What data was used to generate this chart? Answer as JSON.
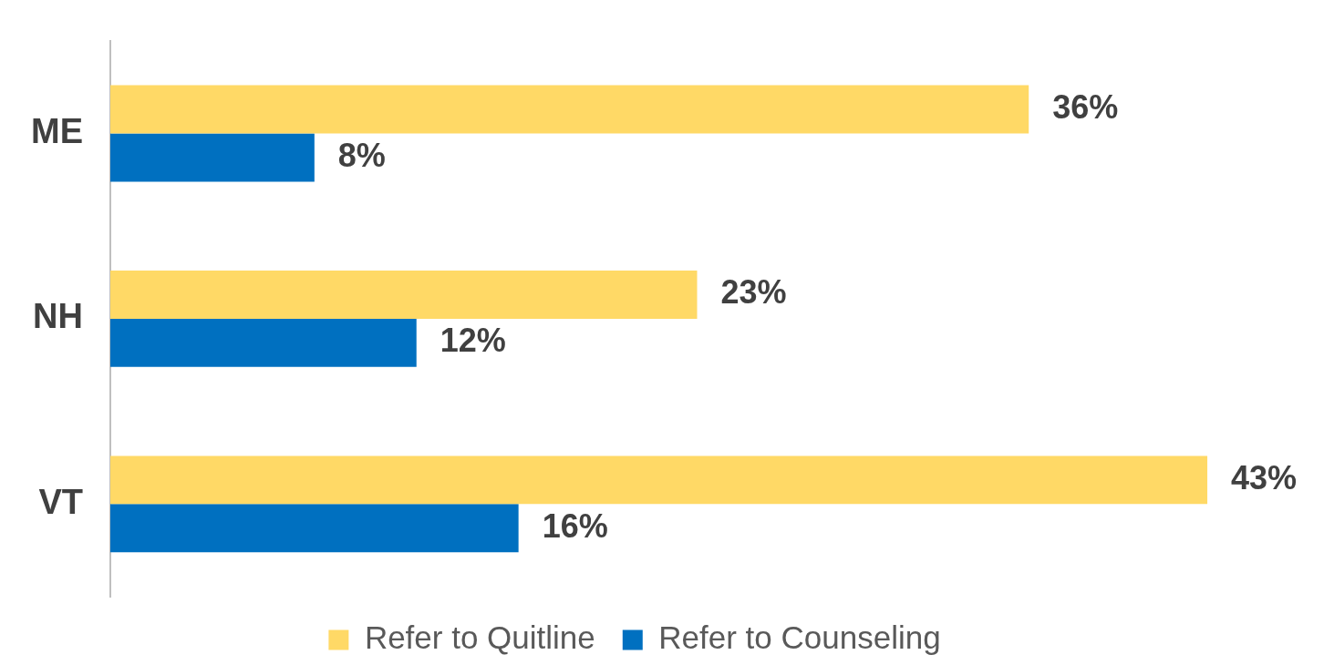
{
  "chart_data": {
    "type": "bar",
    "orientation": "horizontal",
    "categories": [
      "ME",
      "NH",
      "VT"
    ],
    "series": [
      {
        "name": "Refer to Quitline",
        "color": "#ffd966",
        "values": [
          36,
          23,
          43
        ],
        "value_labels": [
          "36%",
          "23%",
          "43%"
        ]
      },
      {
        "name": "Refer to Counseling",
        "color": "#0070c0",
        "values": [
          8,
          12,
          16
        ],
        "value_labels": [
          "8%",
          "12%",
          "16%"
        ]
      }
    ],
    "legend": "bottom",
    "grid": false,
    "tick_labels": "y"
  }
}
